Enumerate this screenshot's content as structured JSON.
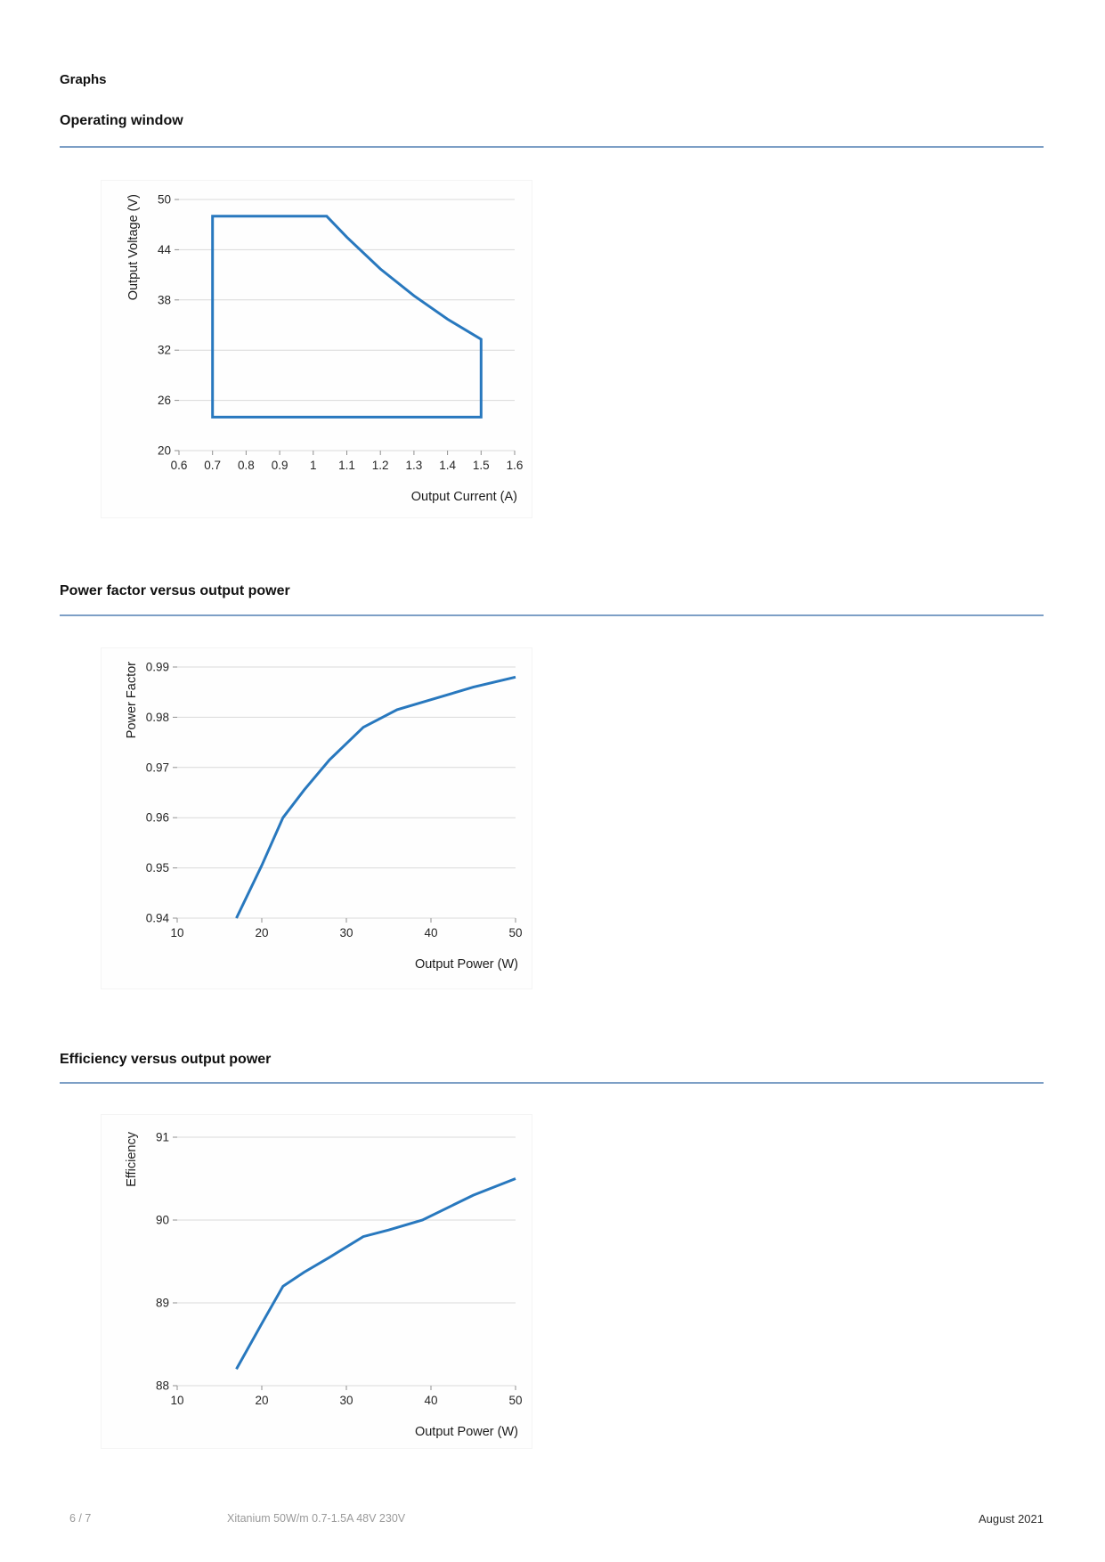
{
  "page": {
    "title": "Graphs",
    "footer": {
      "page_number": "6 / 7",
      "product": "Xitanium 50W/m 0.7-1.5A 48V 230V",
      "date": "August 2021"
    }
  },
  "colors": {
    "line": "#2878BE",
    "rule": "#7D9FC6",
    "grid": "#D9D9D9",
    "tick_mark": "#8F8F8F",
    "tick_text": "#262626",
    "axis_title": "#1C1C1C",
    "footer_muted": "#9A9A9A",
    "footer_dark": "#2D2D2D"
  },
  "sections": [
    {
      "heading": "Operating window"
    },
    {
      "heading": "Power factor versus output power"
    },
    {
      "heading": "Efficiency versus output power"
    }
  ],
  "chart_data": [
    {
      "type": "line",
      "name": "operating-window",
      "title": "Operating window",
      "xlabel": "Output Current (A)",
      "ylabel": "Output Voltage (V)",
      "xlim": [
        0.6,
        1.6
      ],
      "ylim": [
        20,
        50
      ],
      "xtick_values": [
        0.6,
        0.7,
        0.8,
        0.9,
        1,
        1.1,
        1.2,
        1.3,
        1.4,
        1.5,
        1.6
      ],
      "xtick_labels": [
        "0.6",
        "0.7",
        "0.8",
        "0.9",
        "1",
        "1.1",
        "1.2",
        "1.3",
        "1.4",
        "1.5",
        "1.6"
      ],
      "ytick_values": [
        20,
        26,
        32,
        38,
        44,
        50
      ],
      "ytick_labels": [
        "20",
        "26",
        "32",
        "38",
        "44",
        "50"
      ],
      "grid": "horizontal",
      "legend": "none",
      "series": [
        {
          "name": "operating-window-boundary",
          "closed": true,
          "points": [
            [
              0.7,
              48
            ],
            [
              1.04,
              48
            ],
            [
              1.1,
              45.5
            ],
            [
              1.2,
              41.7
            ],
            [
              1.3,
              38.5
            ],
            [
              1.4,
              35.7
            ],
            [
              1.5,
              33.3
            ],
            [
              1.5,
              24
            ],
            [
              0.7,
              24
            ]
          ]
        }
      ]
    },
    {
      "type": "line",
      "name": "power-factor",
      "title": "Power factor versus output power",
      "xlabel": "Output Power (W)",
      "ylabel": "Power Factor",
      "xlim": [
        10,
        50
      ],
      "ylim": [
        0.94,
        0.99
      ],
      "xtick_values": [
        10,
        20,
        30,
        40,
        50
      ],
      "xtick_labels": [
        "10",
        "20",
        "30",
        "40",
        "50"
      ],
      "ytick_values": [
        0.94,
        0.95,
        0.96,
        0.97,
        0.98,
        0.99
      ],
      "ytick_labels": [
        "0.94",
        "0.95",
        "0.96",
        "0.97",
        "0.98",
        "0.99"
      ],
      "grid": "horizontal",
      "legend": "none",
      "series": [
        {
          "name": "power-factor-curve",
          "closed": false,
          "points": [
            [
              17,
              0.94
            ],
            [
              20,
              0.9505
            ],
            [
              22.5,
              0.96
            ],
            [
              25,
              0.9655
            ],
            [
              28,
              0.9715
            ],
            [
              32,
              0.978
            ],
            [
              36,
              0.9815
            ],
            [
              40,
              0.9835
            ],
            [
              45,
              0.986
            ],
            [
              50,
              0.988
            ]
          ]
        }
      ]
    },
    {
      "type": "line",
      "name": "efficiency",
      "title": "Efficiency versus output power",
      "xlabel": "Output Power (W)",
      "ylabel": "Efficiency",
      "xlim": [
        10,
        50
      ],
      "ylim": [
        88,
        91
      ],
      "xtick_values": [
        10,
        20,
        30,
        40,
        50
      ],
      "xtick_labels": [
        "10",
        "20",
        "30",
        "40",
        "50"
      ],
      "ytick_values": [
        88,
        89,
        90,
        91
      ],
      "ytick_labels": [
        "88",
        "89",
        "90",
        "91"
      ],
      "grid": "horizontal",
      "legend": "none",
      "series": [
        {
          "name": "efficiency-curve",
          "closed": false,
          "points": [
            [
              17,
              88.2
            ],
            [
              20,
              88.75
            ],
            [
              22.5,
              89.2
            ],
            [
              25,
              89.37
            ],
            [
              28,
              89.55
            ],
            [
              32,
              89.8
            ],
            [
              35,
              89.88
            ],
            [
              39,
              90
            ],
            [
              45,
              90.3
            ],
            [
              50,
              90.5
            ]
          ]
        }
      ]
    }
  ]
}
